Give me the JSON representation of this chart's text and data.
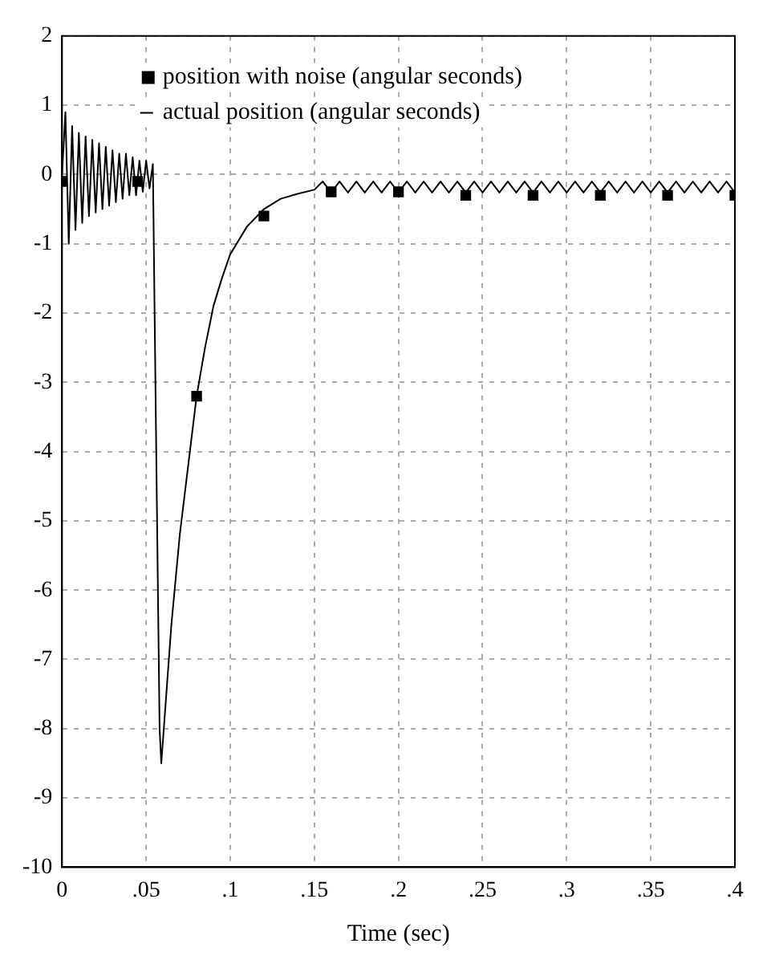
{
  "chart_data": {
    "type": "line",
    "xlabel": "Time (sec)",
    "xlim": [
      0,
      0.4
    ],
    "ylim": [
      -10,
      2
    ],
    "xticks": [
      0,
      {
        "value": 0.05,
        "label": ".05"
      },
      {
        "value": 0.1,
        "label": ".1"
      },
      {
        "value": 0.15,
        "label": ".15"
      },
      {
        "value": 0.2,
        "label": ".2"
      },
      {
        "value": 0.25,
        "label": ".25"
      },
      {
        "value": 0.3,
        "label": ".3"
      },
      {
        "value": 0.35,
        "label": ".35"
      },
      {
        "value": 0.4,
        "label": ".4"
      }
    ],
    "yticks": [
      -10,
      -9,
      -8,
      -7,
      -6,
      -5,
      -4,
      -3,
      -2,
      -1,
      0,
      1,
      2
    ],
    "grid": true,
    "legend": "top",
    "series": [
      {
        "name": "position with noise (angular seconds)",
        "type": "scatter",
        "marker": "square",
        "color": "#000000",
        "x": [
          0,
          0.045,
          0.08,
          0.12,
          0.16,
          0.2,
          0.24,
          0.28,
          0.32,
          0.36,
          0.4
        ],
        "values": [
          -0.1,
          -0.1,
          -3.2,
          -0.6,
          -0.25,
          -0.25,
          -0.3,
          -0.3,
          -0.3,
          -0.3,
          -0.3
        ]
      },
      {
        "name": "actual position (angular seconds)",
        "marker": "none",
        "color": "#000000",
        "x": [
          0,
          0.002,
          0.004,
          0.006,
          0.008,
          0.01,
          0.012,
          0.014,
          0.016,
          0.018,
          0.02,
          0.022,
          0.024,
          0.026,
          0.028,
          0.03,
          0.032,
          0.034,
          0.036,
          0.038,
          0.04,
          0.042,
          0.044,
          0.046,
          0.048,
          0.05,
          0.052,
          0.054,
          0.056,
          0.058,
          0.059,
          0.062,
          0.065,
          0.07,
          0.075,
          0.08,
          0.085,
          0.09,
          0.095,
          0.1,
          0.11,
          0.12,
          0.13,
          0.14,
          0.15,
          0.155,
          0.16,
          0.165,
          0.17,
          0.175,
          0.18,
          0.185,
          0.19,
          0.195,
          0.2,
          0.205,
          0.21,
          0.215,
          0.22,
          0.225,
          0.23,
          0.235,
          0.24,
          0.245,
          0.25,
          0.255,
          0.26,
          0.265,
          0.27,
          0.275,
          0.28,
          0.285,
          0.29,
          0.295,
          0.3,
          0.305,
          0.31,
          0.315,
          0.32,
          0.325,
          0.33,
          0.335,
          0.34,
          0.345,
          0.35,
          0.355,
          0.36,
          0.365,
          0.37,
          0.375,
          0.38,
          0.385,
          0.39,
          0.395,
          0.4
        ],
        "values": [
          0,
          0.9,
          -1,
          0.7,
          -0.8,
          0.6,
          -0.7,
          0.55,
          -0.6,
          0.5,
          -0.55,
          0.45,
          -0.5,
          0.4,
          -0.45,
          0.35,
          -0.4,
          0.3,
          -0.35,
          0.3,
          -0.3,
          0.25,
          -0.3,
          0.2,
          -0.25,
          0.2,
          -0.2,
          0.15,
          -4,
          -8,
          -8.5,
          -7.5,
          -6.5,
          -5.2,
          -4.2,
          -3.2,
          -2.5,
          -1.9,
          -1.5,
          -1.15,
          -0.75,
          -0.5,
          -0.35,
          -0.28,
          -0.22,
          -0.1,
          -0.26,
          -0.1,
          -0.26,
          -0.1,
          -0.26,
          -0.1,
          -0.26,
          -0.1,
          -0.26,
          -0.1,
          -0.26,
          -0.1,
          -0.26,
          -0.1,
          -0.26,
          -0.1,
          -0.26,
          -0.1,
          -0.26,
          -0.1,
          -0.26,
          -0.1,
          -0.26,
          -0.1,
          -0.26,
          -0.1,
          -0.26,
          -0.1,
          -0.26,
          -0.1,
          -0.26,
          -0.1,
          -0.26,
          -0.1,
          -0.26,
          -0.1,
          -0.26,
          -0.1,
          -0.26,
          -0.1,
          -0.26,
          -0.1,
          -0.26,
          -0.1,
          -0.26,
          -0.1,
          -0.26,
          -0.1,
          -0.26
        ]
      }
    ]
  }
}
